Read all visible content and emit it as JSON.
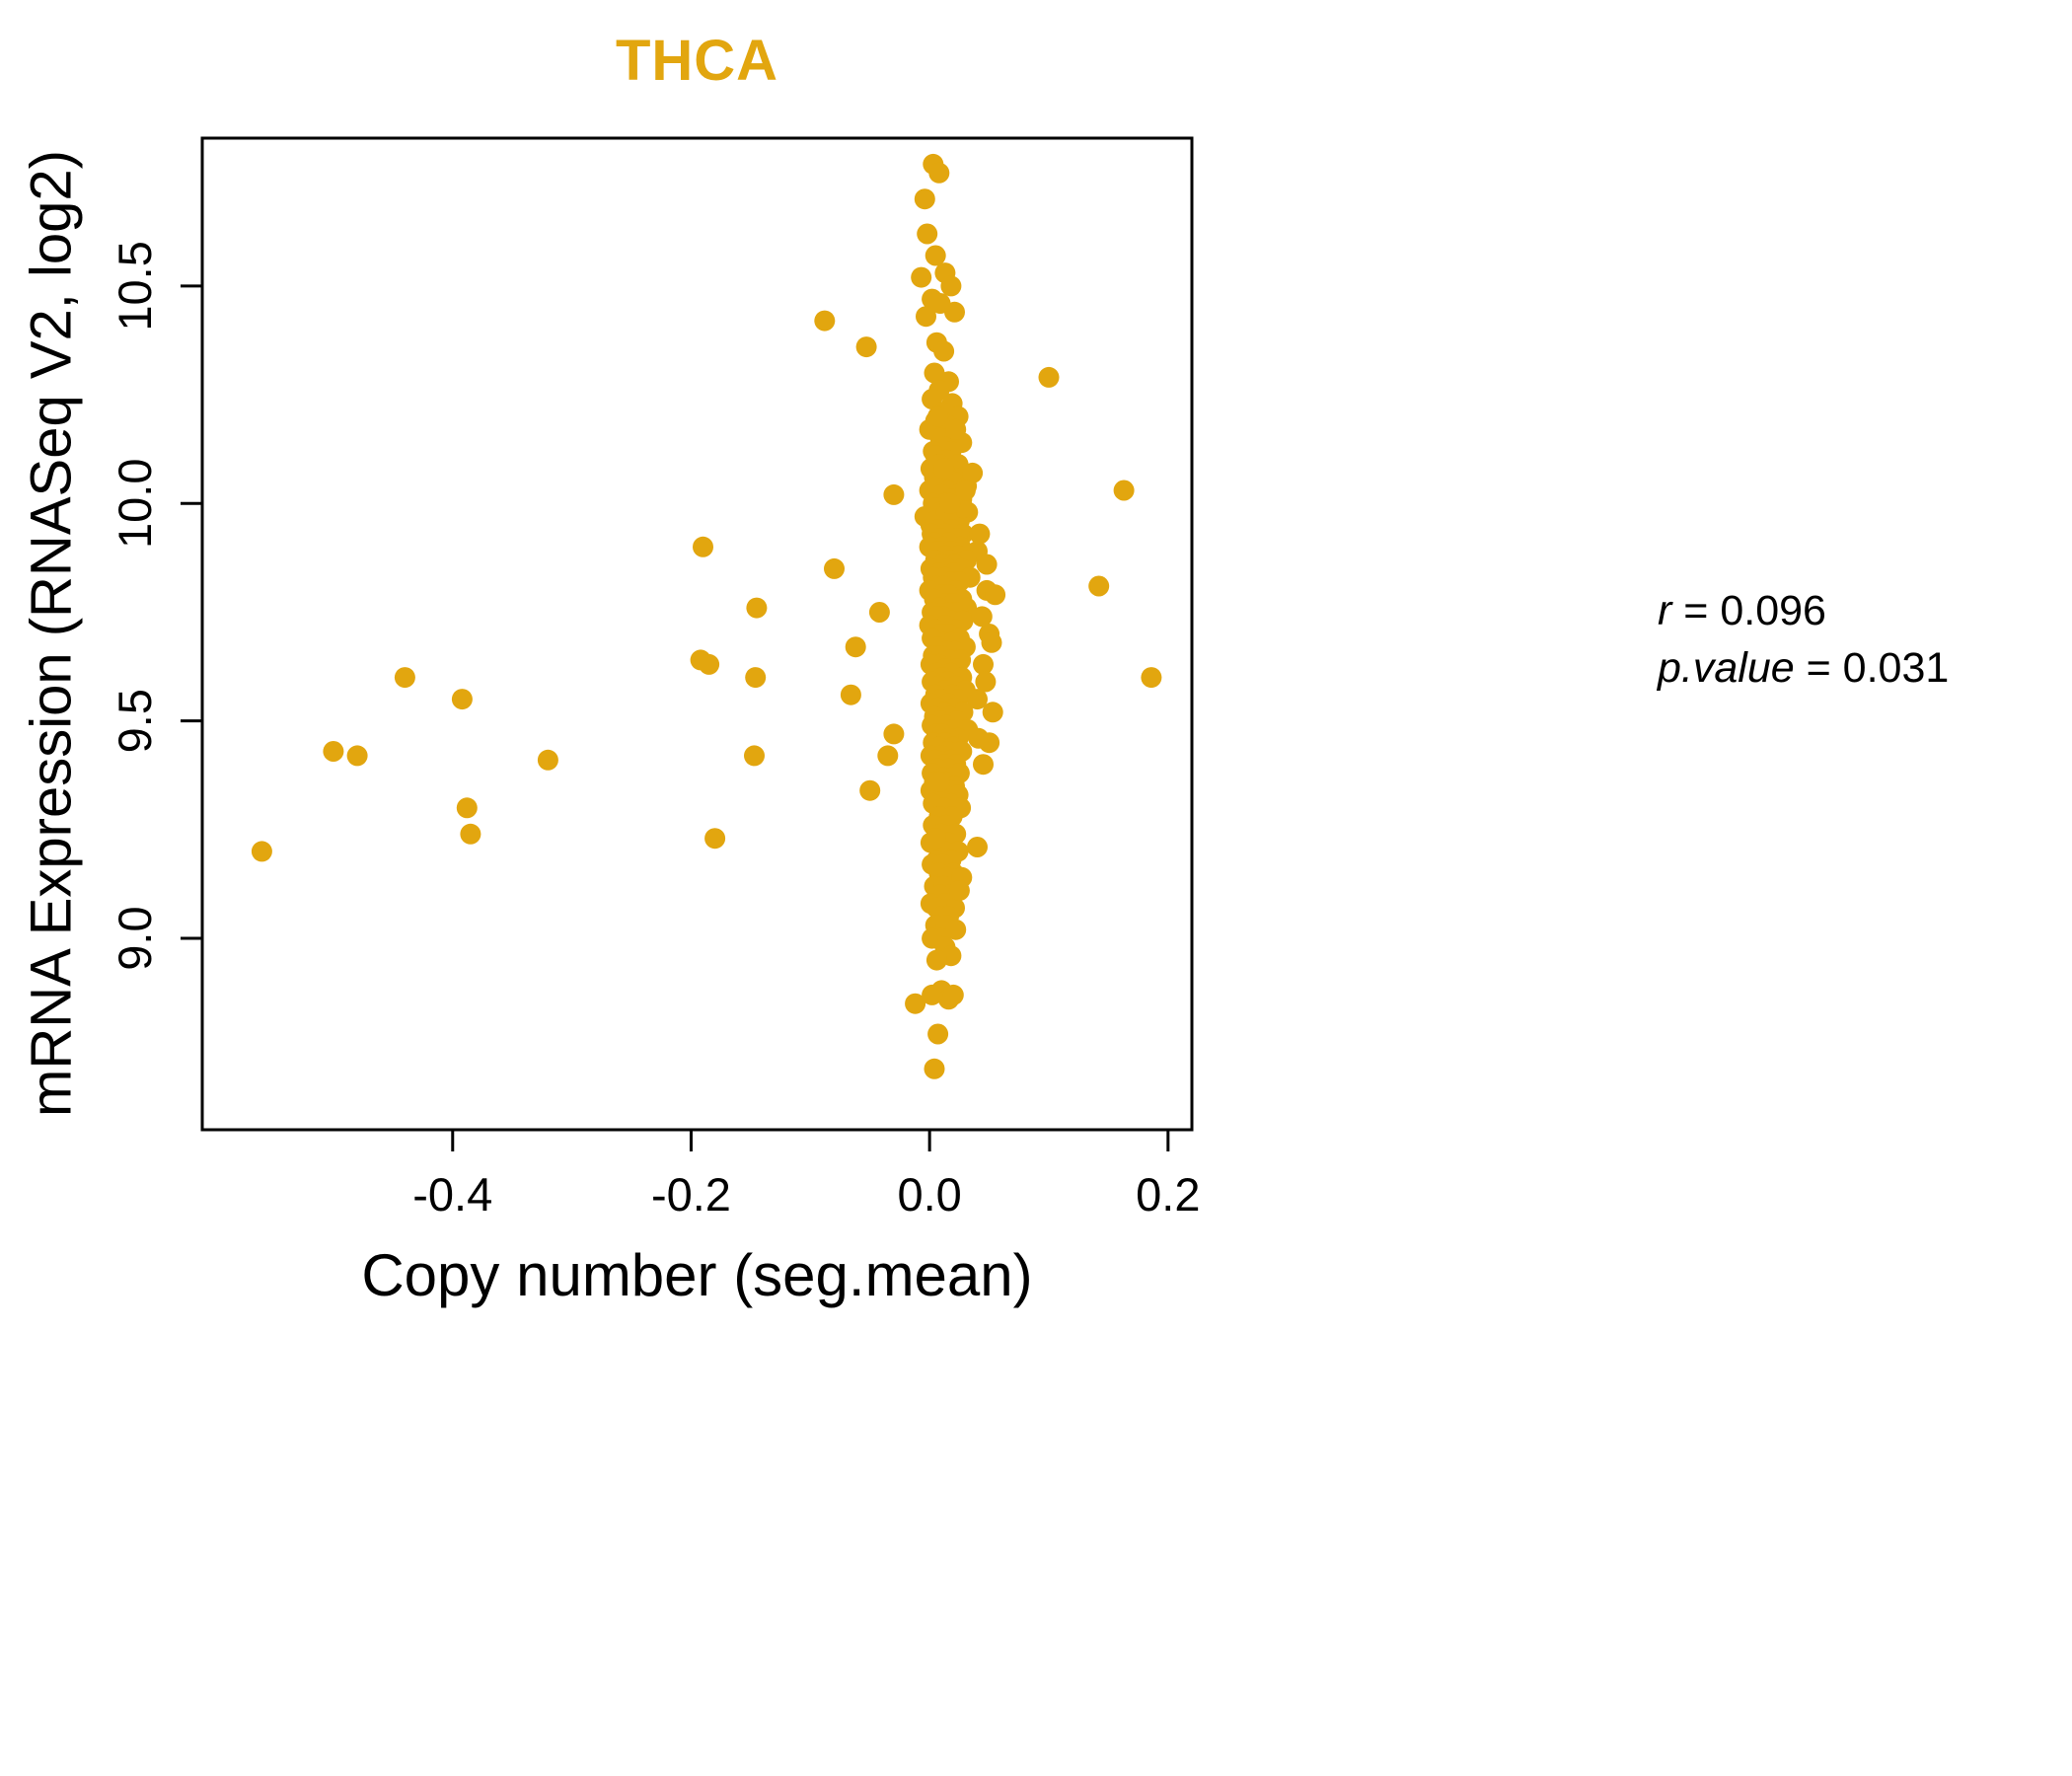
{
  "colors": {
    "accent": "#E2A60F",
    "axis": "#000000"
  },
  "annotation": {
    "r_var": "r",
    "r_rest": " = 0.096",
    "p_var": "p.value",
    "p_rest": " = 0.031"
  },
  "chart_data": {
    "type": "scatter",
    "title": "THCA",
    "xlabel": "Copy number (seg.mean)",
    "ylabel": "mRNA Expression (RNASeq V2, log2)",
    "xlim": [
      -0.61,
      0.22
    ],
    "ylim": [
      8.56,
      10.84
    ],
    "xtick_values": [
      -0.4,
      -0.2,
      0.0,
      0.2
    ],
    "xtick_labels": [
      "-0.4",
      "-0.2",
      "0.0",
      "0.2"
    ],
    "ytick_values": [
      9.0,
      9.5,
      10.0,
      10.5
    ],
    "ytick_labels": [
      "9.0",
      "9.5",
      "10.0",
      "10.5"
    ],
    "point_color": "#E2A60F",
    "point_radius": 10.5,
    "grid": false,
    "legend": "none",
    "points": [
      [
        -0.56,
        9.2
      ],
      [
        -0.5,
        9.43
      ],
      [
        -0.48,
        9.42
      ],
      [
        -0.44,
        9.6
      ],
      [
        -0.392,
        9.55
      ],
      [
        -0.388,
        9.3
      ],
      [
        -0.385,
        9.24
      ],
      [
        -0.32,
        9.41
      ],
      [
        -0.19,
        9.9
      ],
      [
        -0.192,
        9.64
      ],
      [
        -0.185,
        9.63
      ],
      [
        -0.18,
        9.23
      ],
      [
        -0.145,
        9.76
      ],
      [
        -0.146,
        9.6
      ],
      [
        -0.147,
        9.42
      ],
      [
        -0.088,
        10.42
      ],
      [
        -0.053,
        10.36
      ],
      [
        -0.08,
        9.85
      ],
      [
        -0.062,
        9.67
      ],
      [
        -0.066,
        9.56
      ],
      [
        -0.042,
        9.75
      ],
      [
        -0.05,
        9.34
      ],
      [
        0.1,
        10.29
      ],
      [
        0.163,
        10.03
      ],
      [
        0.142,
        9.81
      ],
      [
        0.186,
        9.6
      ],
      [
        0.003,
        10.78
      ],
      [
        0.008,
        10.76
      ],
      [
        -0.004,
        10.7
      ],
      [
        -0.002,
        10.62
      ],
      [
        0.005,
        10.57
      ],
      [
        0.013,
        10.53
      ],
      [
        -0.007,
        10.52
      ],
      [
        0.018,
        10.5
      ],
      [
        0.002,
        10.47
      ],
      [
        0.021,
        10.44
      ],
      [
        -0.003,
        10.43
      ],
      [
        0.009,
        10.46
      ],
      [
        0.006,
        10.37
      ],
      [
        0.012,
        10.35
      ],
      [
        0.004,
        10.3
      ],
      [
        0.016,
        10.28
      ],
      [
        0.008,
        10.26
      ],
      [
        0.002,
        10.24
      ],
      [
        0.019,
        10.23
      ],
      [
        0.011,
        10.21
      ],
      [
        0.024,
        10.2
      ],
      [
        0.005,
        10.19
      ],
      [
        0.015,
        10.18
      ],
      [
        0.0,
        10.17
      ],
      [
        0.021,
        10.16
      ],
      [
        0.009,
        10.15
      ],
      [
        0.027,
        10.14
      ],
      [
        0.013,
        10.13
      ],
      [
        0.003,
        10.12
      ],
      [
        0.018,
        10.12
      ],
      [
        0.007,
        10.2
      ],
      [
        0.022,
        10.17
      ],
      [
        0.005,
        10.11
      ],
      [
        0.014,
        10.1
      ],
      [
        0.024,
        10.09
      ],
      [
        0.001,
        10.08
      ],
      [
        0.017,
        10.08
      ],
      [
        0.009,
        10.07
      ],
      [
        0.028,
        10.06
      ],
      [
        0.004,
        10.06
      ],
      [
        0.012,
        10.05
      ],
      [
        0.02,
        10.05
      ],
      [
        0.031,
        10.04
      ],
      [
        0.007,
        10.04
      ],
      [
        0.015,
        10.03
      ],
      [
        0.0,
        10.03
      ],
      [
        0.023,
        10.02
      ],
      [
        0.01,
        10.02
      ],
      [
        0.018,
        10.01
      ],
      [
        0.027,
        10.01
      ],
      [
        0.003,
        10.0
      ],
      [
        0.013,
        10.0
      ],
      [
        0.006,
        9.99
      ],
      [
        0.021,
        9.99
      ],
      [
        0.032,
        9.98
      ],
      [
        0.009,
        9.98
      ],
      [
        0.016,
        9.97
      ],
      [
        -0.004,
        9.97
      ],
      [
        0.025,
        9.96
      ],
      [
        0.011,
        9.96
      ],
      [
        0.001,
        9.95
      ],
      [
        0.019,
        9.95
      ],
      [
        0.036,
        10.07
      ],
      [
        -0.03,
        10.02
      ],
      [
        0.008,
        10.09
      ],
      [
        0.022,
        9.97
      ],
      [
        0.028,
        9.99
      ],
      [
        0.005,
        9.96
      ],
      [
        0.014,
        9.98
      ],
      [
        0.017,
        10.0
      ],
      [
        0.03,
        10.03
      ],
      [
        0.012,
        10.08
      ],
      [
        0.007,
        9.94
      ],
      [
        0.019,
        9.94
      ],
      [
        0.002,
        9.93
      ],
      [
        0.013,
        9.93
      ],
      [
        0.028,
        9.93
      ],
      [
        0.009,
        9.92
      ],
      [
        0.023,
        9.92
      ],
      [
        0.016,
        9.91
      ],
      [
        0.004,
        9.91
      ],
      [
        0.011,
        9.9
      ],
      [
        0.026,
        9.9
      ],
      [
        0.0,
        9.9
      ],
      [
        0.018,
        9.89
      ],
      [
        0.007,
        9.89
      ],
      [
        0.04,
        9.89
      ],
      [
        0.013,
        9.88
      ],
      [
        0.024,
        9.88
      ],
      [
        0.005,
        9.87
      ],
      [
        0.017,
        9.87
      ],
      [
        0.031,
        9.87
      ],
      [
        0.01,
        9.86
      ],
      [
        0.021,
        9.86
      ],
      [
        0.001,
        9.85
      ],
      [
        0.015,
        9.85
      ],
      [
        0.027,
        9.85
      ],
      [
        0.008,
        9.84
      ],
      [
        0.02,
        9.84
      ],
      [
        0.013,
        9.83
      ],
      [
        0.003,
        9.83
      ],
      [
        0.034,
        9.83
      ],
      [
        0.018,
        9.82
      ],
      [
        0.025,
        9.82
      ],
      [
        0.006,
        9.81
      ],
      [
        0.012,
        9.81
      ],
      [
        0.022,
        9.8
      ],
      [
        0.0,
        9.8
      ],
      [
        0.048,
        9.8
      ],
      [
        0.01,
        9.79
      ],
      [
        0.016,
        9.79
      ],
      [
        0.004,
        9.78
      ],
      [
        0.027,
        9.78
      ],
      [
        0.014,
        9.77
      ],
      [
        0.02,
        9.77
      ],
      [
        0.008,
        9.76
      ],
      [
        0.031,
        9.76
      ],
      [
        0.002,
        9.75
      ],
      [
        0.017,
        9.75
      ],
      [
        0.024,
        9.75
      ],
      [
        0.011,
        9.74
      ],
      [
        0.006,
        9.74
      ],
      [
        0.019,
        9.73
      ],
      [
        0.028,
        9.73
      ],
      [
        0.013,
        9.72
      ],
      [
        0.0,
        9.72
      ],
      [
        0.005,
        9.71
      ],
      [
        0.022,
        9.71
      ],
      [
        0.016,
        9.7
      ],
      [
        0.009,
        9.7
      ],
      [
        0.05,
        9.7
      ],
      [
        0.025,
        9.69
      ],
      [
        0.002,
        9.69
      ],
      [
        0.012,
        9.68
      ],
      [
        0.018,
        9.68
      ],
      [
        0.007,
        9.67
      ],
      [
        0.03,
        9.67
      ],
      [
        0.021,
        9.66
      ],
      [
        0.014,
        9.66
      ],
      [
        0.003,
        9.65
      ],
      [
        0.01,
        9.65
      ],
      [
        0.017,
        9.64
      ],
      [
        0.026,
        9.64
      ],
      [
        0.008,
        9.63
      ],
      [
        0.001,
        9.63
      ],
      [
        0.045,
        9.63
      ],
      [
        0.013,
        9.62
      ],
      [
        0.023,
        9.62
      ],
      [
        0.006,
        9.61
      ],
      [
        0.018,
        9.61
      ],
      [
        0.011,
        9.6
      ],
      [
        0.027,
        9.6
      ],
      [
        0.002,
        9.59
      ],
      [
        0.015,
        9.59
      ],
      [
        0.022,
        9.58
      ],
      [
        0.008,
        9.58
      ],
      [
        0.013,
        9.57
      ],
      [
        0.03,
        9.57
      ],
      [
        0.005,
        9.56
      ],
      [
        0.019,
        9.56
      ],
      [
        0.01,
        9.55
      ],
      [
        0.024,
        9.55
      ],
      [
        0.04,
        9.55
      ],
      [
        0.001,
        9.54
      ],
      [
        0.016,
        9.54
      ],
      [
        0.021,
        9.53
      ],
      [
        0.007,
        9.53
      ],
      [
        0.012,
        9.52
      ],
      [
        0.028,
        9.52
      ],
      [
        0.004,
        9.51
      ],
      [
        0.017,
        9.51
      ],
      [
        0.009,
        9.5
      ],
      [
        0.023,
        9.5
      ],
      [
        0.014,
        9.49
      ],
      [
        0.002,
        9.49
      ],
      [
        0.019,
        9.48
      ],
      [
        0.032,
        9.48
      ],
      [
        0.006,
        9.47
      ],
      [
        0.011,
        9.47
      ],
      [
        -0.03,
        9.47
      ],
      [
        0.024,
        9.46
      ],
      [
        0.016,
        9.46
      ],
      [
        0.003,
        9.45
      ],
      [
        0.013,
        9.45
      ],
      [
        0.05,
        9.45
      ],
      [
        0.02,
        9.44
      ],
      [
        0.008,
        9.44
      ],
      [
        0.015,
        9.43
      ],
      [
        0.027,
        9.43
      ],
      [
        0.001,
        9.42
      ],
      [
        0.01,
        9.42
      ],
      [
        -0.035,
        9.42
      ],
      [
        0.018,
        9.41
      ],
      [
        0.005,
        9.41
      ],
      [
        0.012,
        9.4
      ],
      [
        0.022,
        9.4
      ],
      [
        0.045,
        9.4
      ],
      [
        0.007,
        9.39
      ],
      [
        0.016,
        9.39
      ],
      [
        0.025,
        9.38
      ],
      [
        0.002,
        9.38
      ],
      [
        0.011,
        9.37
      ],
      [
        0.019,
        9.37
      ],
      [
        0.004,
        9.36
      ],
      [
        0.014,
        9.36
      ],
      [
        0.021,
        9.35
      ],
      [
        0.009,
        9.35
      ],
      [
        0.001,
        9.34
      ],
      [
        0.017,
        9.34
      ],
      [
        0.013,
        9.33
      ],
      [
        0.024,
        9.33
      ],
      [
        0.006,
        9.32
      ],
      [
        0.01,
        9.32
      ],
      [
        0.018,
        9.31
      ],
      [
        0.003,
        9.31
      ],
      [
        0.012,
        9.3
      ],
      [
        0.026,
        9.3
      ],
      [
        0.008,
        9.36
      ],
      [
        0.008,
        9.28
      ],
      [
        0.019,
        9.28
      ],
      [
        0.003,
        9.26
      ],
      [
        0.014,
        9.26
      ],
      [
        0.01,
        9.24
      ],
      [
        0.022,
        9.24
      ],
      [
        0.016,
        9.22
      ],
      [
        0.001,
        9.22
      ],
      [
        0.009,
        9.21
      ],
      [
        0.04,
        9.21
      ],
      [
        0.013,
        9.2
      ],
      [
        0.024,
        9.2
      ],
      [
        0.006,
        9.18
      ],
      [
        0.018,
        9.18
      ],
      [
        0.002,
        9.17
      ],
      [
        0.011,
        9.17
      ],
      [
        0.02,
        9.15
      ],
      [
        0.008,
        9.15
      ],
      [
        0.015,
        9.14
      ],
      [
        0.027,
        9.14
      ],
      [
        0.004,
        9.12
      ],
      [
        0.012,
        9.12
      ],
      [
        0.017,
        9.1
      ],
      [
        0.009,
        9.1
      ],
      [
        0.001,
        9.08
      ],
      [
        0.013,
        9.08
      ],
      [
        0.021,
        9.07
      ],
      [
        0.006,
        9.07
      ],
      [
        0.01,
        9.05
      ],
      [
        0.016,
        9.05
      ],
      [
        0.025,
        9.11
      ],
      [
        0.005,
        9.23
      ],
      [
        0.005,
        9.03
      ],
      [
        0.014,
        9.03
      ],
      [
        0.022,
        9.02
      ],
      [
        0.009,
        9.0
      ],
      [
        0.002,
        9.0
      ],
      [
        0.013,
        8.98
      ],
      [
        0.018,
        8.96
      ],
      [
        0.006,
        8.95
      ],
      [
        0.01,
        8.88
      ],
      [
        0.002,
        8.87
      ],
      [
        0.016,
        8.86
      ],
      [
        -0.012,
        8.85
      ],
      [
        0.02,
        8.87
      ],
      [
        0.007,
        8.78
      ],
      [
        0.004,
        8.7
      ],
      [
        0.042,
        9.93
      ],
      [
        0.048,
        9.86
      ],
      [
        0.055,
        9.79
      ],
      [
        0.044,
        9.74
      ],
      [
        0.052,
        9.68
      ],
      [
        0.047,
        9.59
      ],
      [
        0.053,
        9.52
      ],
      [
        0.041,
        9.46
      ]
    ]
  }
}
